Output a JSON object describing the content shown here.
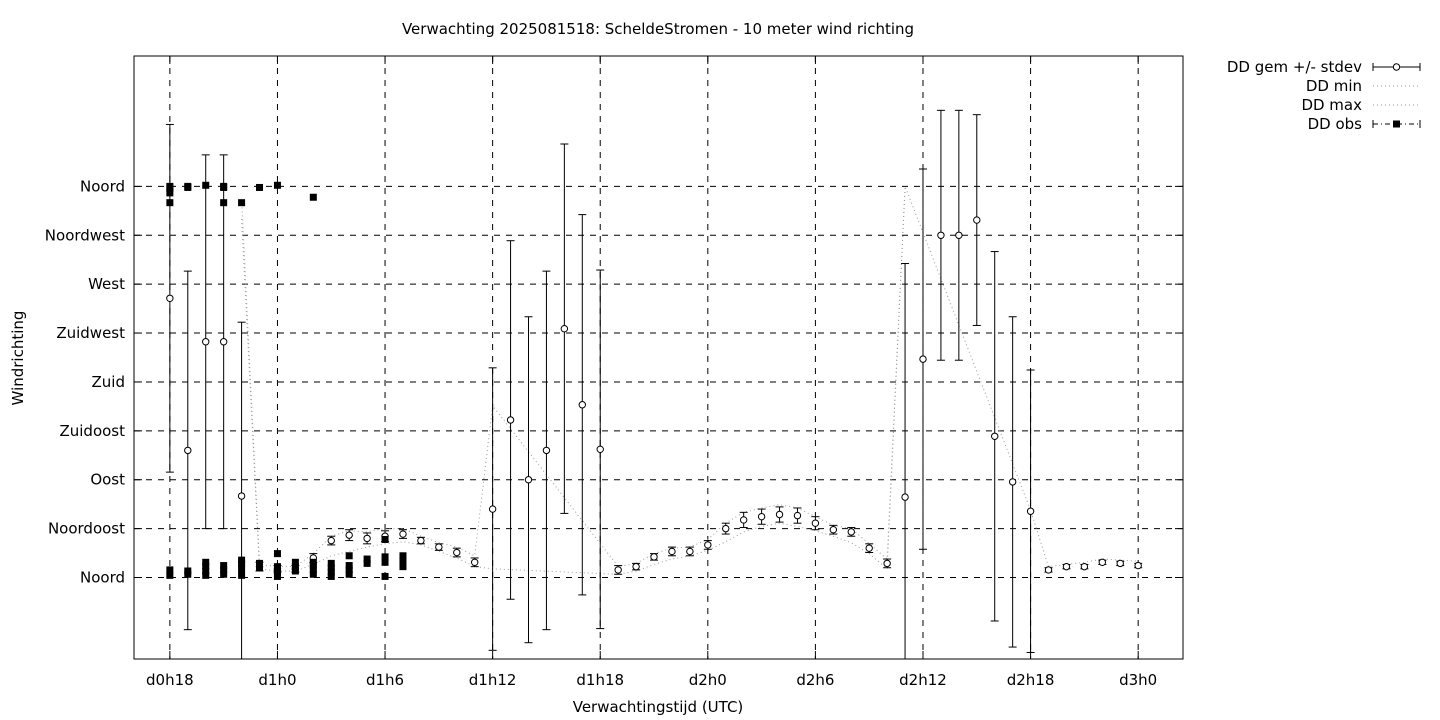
{
  "chart_data": {
    "type": "scatter",
    "title": "Verwachting 2025081518: ScheldeStromen - 10 meter wind richting",
    "xlabel": "Verwachtingstijd (UTC)",
    "ylabel": "Windrichting",
    "x_unit": "hours since d0h18",
    "xlim": [
      -2,
      56.5
    ],
    "ylim": [
      -75,
      480
    ],
    "x_ticks": [
      {
        "x": 0,
        "label": "d0h18"
      },
      {
        "x": 6,
        "label": "d1h0"
      },
      {
        "x": 12,
        "label": "d1h6"
      },
      {
        "x": 18,
        "label": "d1h12"
      },
      {
        "x": 24,
        "label": "d1h18"
      },
      {
        "x": 30,
        "label": "d2h0"
      },
      {
        "x": 36,
        "label": "d2h6"
      },
      {
        "x": 42,
        "label": "d2h12"
      },
      {
        "x": 48,
        "label": "d2h18"
      },
      {
        "x": 54,
        "label": "d3h0"
      }
    ],
    "y_ticks": [
      {
        "y": 0,
        "label": "Noord"
      },
      {
        "y": 45,
        "label": "Noordoost"
      },
      {
        "y": 90,
        "label": "Oost"
      },
      {
        "y": 135,
        "label": "Zuidoost"
      },
      {
        "y": 180,
        "label": "Zuid"
      },
      {
        "y": 225,
        "label": "Zuidwest"
      },
      {
        "y": 270,
        "label": "West"
      },
      {
        "y": 315,
        "label": "Noordwest"
      },
      {
        "y": 360,
        "label": "Noord"
      }
    ],
    "grid": true,
    "legend_position": "outside-top-right",
    "legend": [
      {
        "name": "DD gem +/- stdev",
        "style": "errorbar"
      },
      {
        "name": "DD min",
        "style": "dotted"
      },
      {
        "name": "DD max",
        "style": "dotted"
      },
      {
        "name": "DD obs",
        "style": "filled-square"
      }
    ],
    "mean": [
      {
        "x": 0,
        "y": 257,
        "err": 160
      },
      {
        "x": 1,
        "y": 117,
        "err": 165
      },
      {
        "x": 2,
        "y": 217,
        "err": 172
      },
      {
        "x": 3,
        "y": 217,
        "err": 172
      },
      {
        "x": 4,
        "y": 75,
        "err": 160
      },
      {
        "x": 5,
        "y": 10,
        "err": 4
      },
      {
        "x": 6,
        "y": 8,
        "err": 3
      },
      {
        "x": 7,
        "y": 8,
        "err": 3
      },
      {
        "x": 8,
        "y": 18,
        "err": 4
      },
      {
        "x": 9,
        "y": 34,
        "err": 4
      },
      {
        "x": 10,
        "y": 39,
        "err": 5
      },
      {
        "x": 11,
        "y": 36,
        "err": 5
      },
      {
        "x": 12,
        "y": 38,
        "err": 5
      },
      {
        "x": 13,
        "y": 40,
        "err": 4
      },
      {
        "x": 14,
        "y": 34,
        "err": 3
      },
      {
        "x": 15,
        "y": 28,
        "err": 3
      },
      {
        "x": 16,
        "y": 23,
        "err": 4
      },
      {
        "x": 17,
        "y": 14,
        "err": 4
      },
      {
        "x": 18,
        "y": 63,
        "err": 130
      },
      {
        "x": 19,
        "y": 145,
        "err": 165
      },
      {
        "x": 20,
        "y": 90,
        "err": 150
      },
      {
        "x": 21,
        "y": 117,
        "err": 165
      },
      {
        "x": 22,
        "y": 229,
        "err": 170
      },
      {
        "x": 23,
        "y": 159,
        "err": 175
      },
      {
        "x": 24,
        "y": 118,
        "err": 165
      },
      {
        "x": 25,
        "y": 7,
        "err": 4
      },
      {
        "x": 26,
        "y": 10,
        "err": 3
      },
      {
        "x": 27,
        "y": 19,
        "err": 3
      },
      {
        "x": 28,
        "y": 24,
        "err": 4
      },
      {
        "x": 29,
        "y": 24,
        "err": 4
      },
      {
        "x": 30,
        "y": 30,
        "err": 4
      },
      {
        "x": 31,
        "y": 45,
        "err": 5
      },
      {
        "x": 32,
        "y": 53,
        "err": 7
      },
      {
        "x": 33,
        "y": 56,
        "err": 7
      },
      {
        "x": 34,
        "y": 58,
        "err": 7
      },
      {
        "x": 35,
        "y": 57,
        "err": 7
      },
      {
        "x": 36,
        "y": 50,
        "err": 6
      },
      {
        "x": 37,
        "y": 44,
        "err": 4
      },
      {
        "x": 38,
        "y": 42,
        "err": 4
      },
      {
        "x": 39,
        "y": 27,
        "err": 4
      },
      {
        "x": 40,
        "y": 13,
        "err": 4
      },
      {
        "x": 41,
        "y": 74,
        "err": 215
      },
      {
        "x": 42,
        "y": 201,
        "err": 175
      },
      {
        "x": 43,
        "y": 315,
        "err": 115
      },
      {
        "x": 44,
        "y": 315,
        "err": 115
      },
      {
        "x": 45,
        "y": 329,
        "err": 97
      },
      {
        "x": 46,
        "y": 130,
        "err": 170
      },
      {
        "x": 47,
        "y": 88,
        "err": 152
      },
      {
        "x": 48,
        "y": 61,
        "err": 130
      },
      {
        "x": 49,
        "y": 7,
        "err": 2
      },
      {
        "x": 50,
        "y": 10,
        "err": 2
      },
      {
        "x": 51,
        "y": 10,
        "err": 2
      },
      {
        "x": 52,
        "y": 14,
        "err": 2
      },
      {
        "x": 53,
        "y": 13,
        "err": 2
      },
      {
        "x": 54,
        "y": 11,
        "err": 2
      }
    ],
    "min_line": [
      [
        4,
        330
      ],
      [
        5,
        8
      ],
      [
        6,
        6
      ],
      [
        7,
        6
      ],
      [
        8,
        12
      ],
      [
        9,
        20
      ],
      [
        10,
        24
      ],
      [
        11,
        28
      ],
      [
        12,
        31
      ],
      [
        13,
        33
      ],
      [
        14,
        30
      ],
      [
        15,
        24
      ],
      [
        16,
        18
      ],
      [
        17,
        10
      ],
      [
        18,
        8
      ],
      [
        25,
        3
      ],
      [
        26,
        6
      ],
      [
        27,
        12
      ],
      [
        28,
        17
      ],
      [
        29,
        20
      ],
      [
        30,
        25
      ],
      [
        31,
        33
      ],
      [
        32,
        42
      ],
      [
        33,
        47
      ],
      [
        34,
        50
      ],
      [
        35,
        47
      ],
      [
        36,
        43
      ],
      [
        37,
        38
      ],
      [
        38,
        32
      ],
      [
        39,
        22
      ],
      [
        40,
        8
      ],
      [
        41,
        360
      ]
    ],
    "max_line": [
      [
        4,
        348
      ],
      [
        5,
        12
      ],
      [
        6,
        10
      ],
      [
        7,
        10
      ],
      [
        8,
        22
      ],
      [
        9,
        38
      ],
      [
        10,
        43
      ],
      [
        11,
        42
      ],
      [
        12,
        45
      ],
      [
        13,
        45
      ],
      [
        14,
        38
      ],
      [
        15,
        32
      ],
      [
        16,
        28
      ],
      [
        17,
        20
      ],
      [
        18,
        158
      ],
      [
        25,
        10
      ],
      [
        26,
        13
      ],
      [
        27,
        22
      ],
      [
        28,
        27
      ],
      [
        29,
        28
      ],
      [
        30,
        35
      ],
      [
        31,
        50
      ],
      [
        32,
        60
      ],
      [
        33,
        64
      ],
      [
        34,
        67
      ],
      [
        35,
        64
      ],
      [
        36,
        56
      ],
      [
        37,
        48
      ],
      [
        38,
        45
      ],
      [
        39,
        31
      ],
      [
        40,
        17
      ],
      [
        41,
        360
      ],
      [
        48,
        62
      ],
      [
        49,
        10
      ],
      [
        50,
        12
      ],
      [
        51,
        14
      ],
      [
        52,
        17
      ],
      [
        53,
        16
      ],
      [
        54,
        15
      ]
    ],
    "obs": [
      [
        0,
        360
      ],
      [
        0,
        358
      ],
      [
        0,
        354
      ],
      [
        0,
        345
      ],
      [
        0,
        7
      ],
      [
        0,
        2
      ],
      [
        1,
        360
      ],
      [
        1,
        359
      ],
      [
        1,
        6
      ],
      [
        1,
        3
      ],
      [
        2,
        361
      ],
      [
        2,
        14
      ],
      [
        2,
        10
      ],
      [
        2,
        6
      ],
      [
        2,
        2
      ],
      [
        3,
        360
      ],
      [
        3,
        359
      ],
      [
        3,
        345
      ],
      [
        3,
        11
      ],
      [
        3,
        7
      ],
      [
        3,
        3
      ],
      [
        4,
        345
      ],
      [
        4,
        16
      ],
      [
        4,
        13
      ],
      [
        4,
        8
      ],
      [
        4,
        2
      ],
      [
        5,
        359
      ],
      [
        5,
        13
      ],
      [
        5,
        9
      ],
      [
        6,
        361
      ],
      [
        6,
        22
      ],
      [
        6,
        10
      ],
      [
        6,
        5
      ],
      [
        6,
        1
      ],
      [
        7,
        14
      ],
      [
        7,
        10
      ],
      [
        7,
        6
      ],
      [
        8,
        350
      ],
      [
        8,
        14
      ],
      [
        8,
        11
      ],
      [
        8,
        7
      ],
      [
        8,
        3
      ],
      [
        9,
        13
      ],
      [
        9,
        9
      ],
      [
        9,
        5
      ],
      [
        9,
        1
      ],
      [
        10,
        20
      ],
      [
        10,
        11
      ],
      [
        10,
        7
      ],
      [
        10,
        3
      ],
      [
        11,
        17
      ],
      [
        11,
        13
      ],
      [
        12,
        35
      ],
      [
        12,
        19
      ],
      [
        12,
        14
      ],
      [
        12,
        1
      ],
      [
        13,
        20
      ],
      [
        13,
        16
      ],
      [
        13,
        10
      ]
    ]
  }
}
